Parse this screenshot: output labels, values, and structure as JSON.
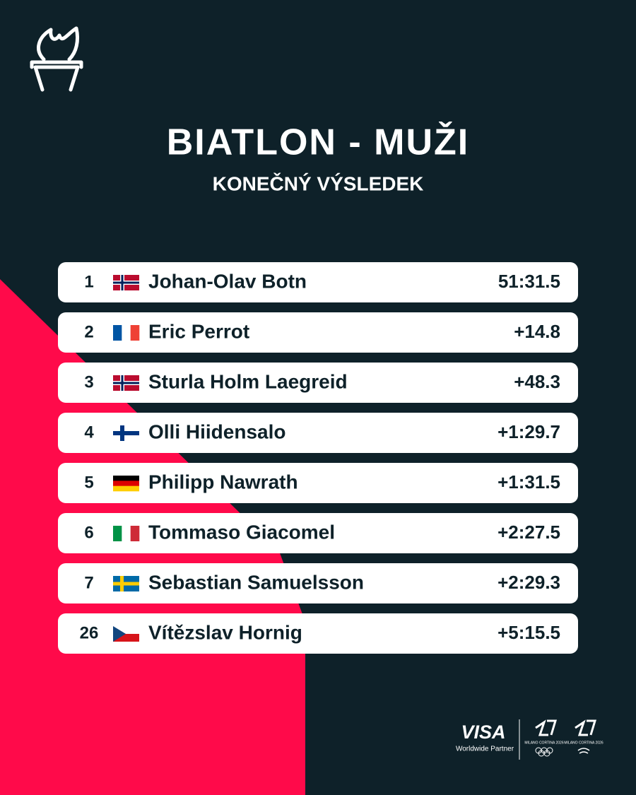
{
  "header": {
    "title": "BIATLON - MUŽI",
    "subtitle": "KONEČNÝ VÝSLEDEK"
  },
  "results": [
    {
      "rank": "1",
      "name": "Johan-Olav Botn",
      "time": "51:31.5"
    },
    {
      "rank": "2",
      "name": "Eric Perrot",
      "time": "+14.8"
    },
    {
      "rank": "3",
      "name": "Sturla Holm Laegreid",
      "time": "+48.3"
    },
    {
      "rank": "4",
      "name": "Olli Hiidensalo",
      "time": "+1:29.7"
    },
    {
      "rank": "5",
      "name": "Philipp Nawrath",
      "time": "+1:31.5"
    },
    {
      "rank": "6",
      "name": "Tommaso Giacomel",
      "time": "+2:27.5"
    },
    {
      "rank": "7",
      "name": "Sebastian Samuelsson",
      "time": "+2:29.3"
    },
    {
      "rank": "26",
      "name": "Vítězslav Hornig",
      "time": "+5:15.5"
    }
  ],
  "footer": {
    "sponsor": "VISA",
    "sponsor_note": "Worldwide Partner",
    "logos": [
      "MILANO CORTINA 2026",
      "MILANO CORTINA 2026"
    ]
  }
}
